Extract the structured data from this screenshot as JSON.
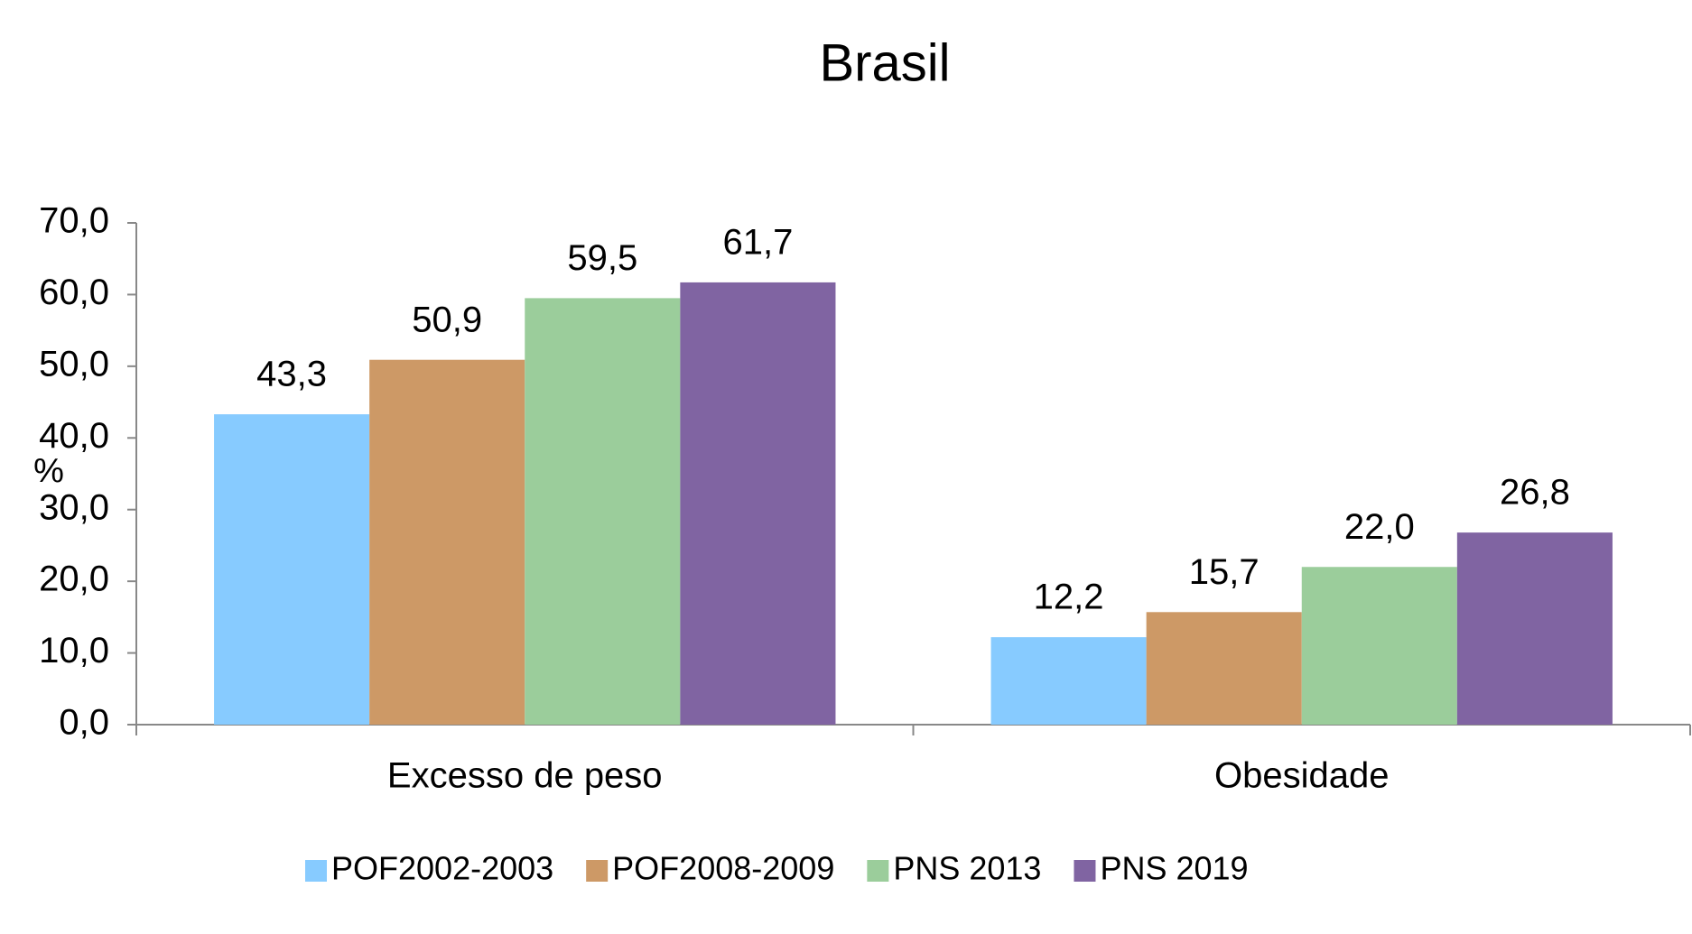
{
  "chart_data": {
    "type": "bar",
    "title": "Brasil",
    "y_label": "%",
    "categories": [
      "Excesso de peso",
      "Obesidade"
    ],
    "series": [
      {
        "name": "POF2002-2003",
        "color": "#87cbff",
        "values": [
          43.3,
          12.2
        ],
        "value_labels": [
          "43,3",
          "12,2"
        ]
      },
      {
        "name": "POF2008-2009",
        "color": "#cd9966",
        "values": [
          50.9,
          15.7
        ],
        "value_labels": [
          "50,9",
          "15,7"
        ]
      },
      {
        "name": "PNS 2013",
        "color": "#9bcd9b",
        "values": [
          59.5,
          22.0
        ],
        "value_labels": [
          "59,5",
          "22,0"
        ]
      },
      {
        "name": "PNS 2019",
        "color": "#8064a2",
        "values": [
          61.7,
          26.8
        ],
        "value_labels": [
          "61,7",
          "26,8"
        ]
      }
    ],
    "ylim": [
      0,
      70
    ],
    "yticks": [
      {
        "value": 0,
        "label": "0,0"
      },
      {
        "value": 10,
        "label": "10,0"
      },
      {
        "value": 20,
        "label": "20,0"
      },
      {
        "value": 30,
        "label": "30,0"
      },
      {
        "value": 40,
        "label": "40,0"
      },
      {
        "value": 50,
        "label": "50,0"
      },
      {
        "value": 60,
        "label": "60,0"
      },
      {
        "value": 70,
        "label": "70,0"
      }
    ],
    "grid": false,
    "legend": "bottom"
  }
}
